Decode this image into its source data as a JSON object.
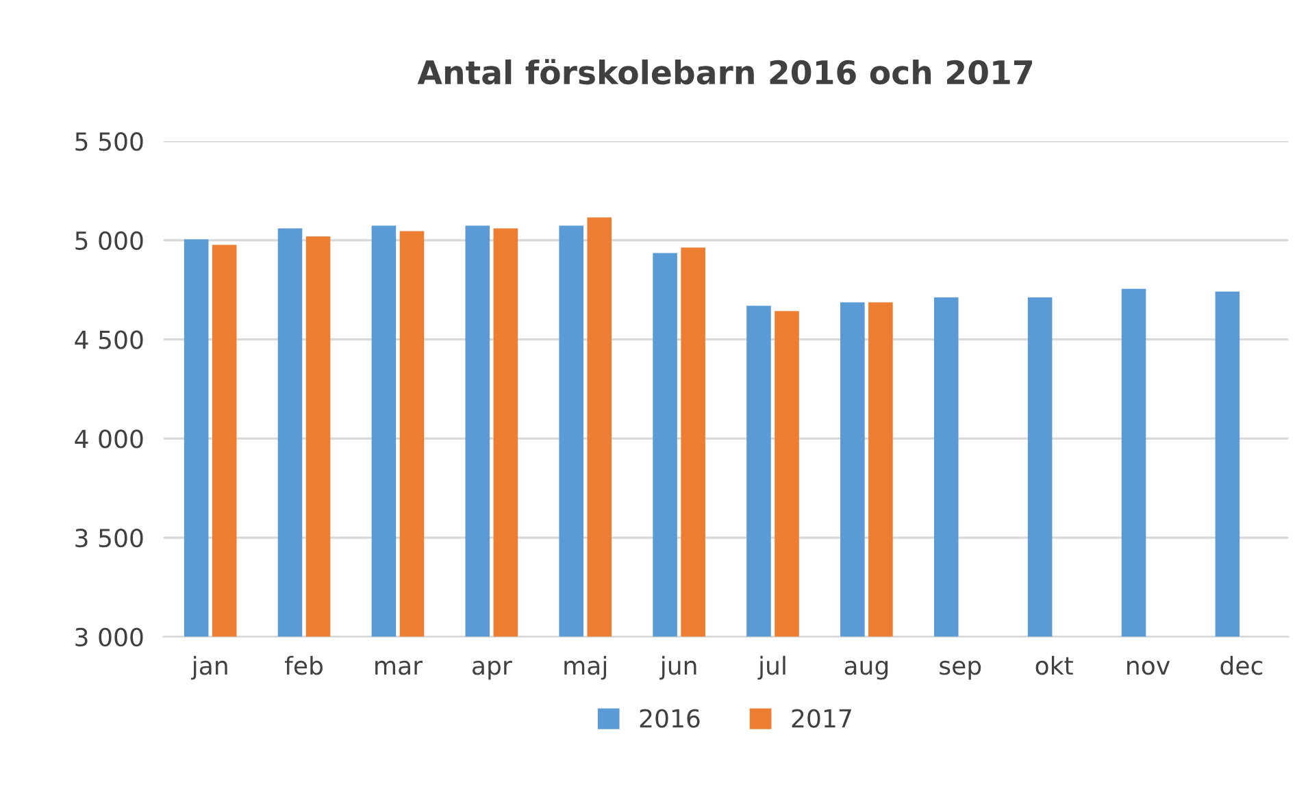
{
  "chart_data": {
    "type": "bar",
    "title": "Antal förskolebarn 2016 och 2017",
    "categories": [
      "jan",
      "feb",
      "mar",
      "apr",
      "maj",
      "jun",
      "jul",
      "aug",
      "sep",
      "okt",
      "nov",
      "dec"
    ],
    "series": [
      {
        "name": "2016",
        "color": "#5b9bd5",
        "values": [
          5005,
          5060,
          5074,
          5074,
          5074,
          4936,
          4670,
          4687,
          4712,
          4712,
          4755,
          4741
        ]
      },
      {
        "name": "2017",
        "color": "#ed7d31",
        "values": [
          4977,
          5019,
          5046,
          5060,
          5115,
          4963,
          4643,
          4687,
          null,
          null,
          null,
          null
        ]
      }
    ],
    "ylim": [
      3000,
      5500
    ],
    "yticks": [
      {
        "value": 3000,
        "label": "3 000"
      },
      {
        "value": 3500,
        "label": "3 500"
      },
      {
        "value": 4000,
        "label": "4 000"
      },
      {
        "value": 4500,
        "label": "4 500"
      },
      {
        "value": 5000,
        "label": "5 000"
      },
      {
        "value": 5500,
        "label": "5 500"
      }
    ],
    "grid": "y",
    "legend": "bottom"
  }
}
